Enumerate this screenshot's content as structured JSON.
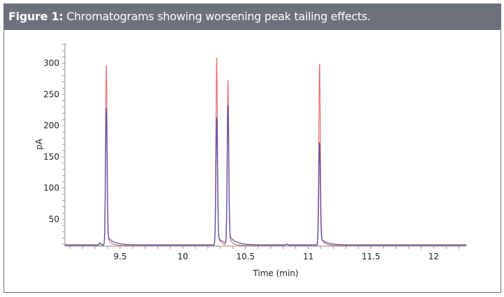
{
  "figure": {
    "label": "Figure 1:",
    "caption": "Chromatograms showing worsening peak tailing effects."
  },
  "chart_data": {
    "type": "line",
    "xlabel": "Time (min)",
    "ylabel": "pA",
    "xlim": [
      9.06,
      12.26
    ],
    "ylim": [
      7,
      332
    ],
    "x_ticks": [
      9.5,
      10,
      10.5,
      11,
      11.5,
      12
    ],
    "x_tick_labels": [
      "9.5",
      "10",
      "10.5",
      "11",
      "11.5",
      "12"
    ],
    "y_ticks": [
      50,
      100,
      150,
      200,
      250,
      300
    ],
    "y_tick_labels": [
      "50",
      "100",
      "150",
      "200",
      "250",
      "300"
    ],
    "grid": false,
    "legend": "none",
    "series": [
      {
        "color": "#e06060",
        "baseline": 8,
        "peaks": [
          {
            "time": 9.34,
            "height": 4
          },
          {
            "time": 9.39,
            "height": 289
          },
          {
            "time": 10.27,
            "height": 301
          },
          {
            "time": 10.36,
            "height": 264
          },
          {
            "time": 10.83,
            "height": 2
          },
          {
            "time": 11.09,
            "height": 291
          }
        ]
      },
      {
        "color": "#4a4aa8",
        "baseline": 9,
        "peaks": [
          {
            "time": 9.34,
            "height": 3
          },
          {
            "time": 9.39,
            "height": 219
          },
          {
            "time": 10.27,
            "height": 204
          },
          {
            "time": 10.36,
            "height": 221
          },
          {
            "time": 10.83,
            "height": 1
          },
          {
            "time": 11.09,
            "height": 164
          }
        ]
      }
    ]
  }
}
